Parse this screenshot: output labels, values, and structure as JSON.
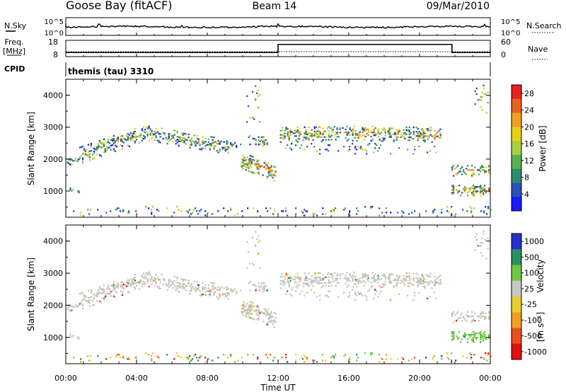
{
  "header": {
    "station": "Goose Bay (fitACF)",
    "beam": "Beam 14",
    "date": "09/Mar/2010"
  },
  "strip_nsky": {
    "label": "N.Sky",
    "left_ticks": [
      "10^5",
      "10^0"
    ],
    "right_ticks": [
      "10^5",
      "10^0"
    ],
    "right_label": "N.Search"
  },
  "strip_freq": {
    "label_line1": "Freq.",
    "label_line2": "[MHz]",
    "left_ticks": [
      "18",
      "8"
    ],
    "right_ticks": [
      "60",
      "0"
    ],
    "right_label": "Nave",
    "freq_step": {
      "x": [
        "00:00",
        "12:00",
        "21:50",
        "24:00"
      ],
      "y": [
        10.5,
        15.5,
        10.5,
        10.5
      ]
    }
  },
  "strip_cpid": {
    "label": "CPID",
    "text": "themis (tau) 3310"
  },
  "chart_data": [
    {
      "type": "heatmap",
      "name": "power",
      "ylabel": "Slant Range [km]",
      "ylim": [
        180,
        4500
      ],
      "yticks": [
        "1000",
        "2000",
        "3000",
        "4000"
      ],
      "xlim": [
        0,
        24
      ],
      "colorbar_label": "Power [dB]",
      "colorbar_ticks": [
        "4",
        "8",
        "12",
        "16",
        "20",
        "24",
        "28"
      ],
      "colorbar_range": [
        0,
        30
      ],
      "colors": [
        "#1a1aff",
        "#2a50b8",
        "#2e8b70",
        "#5ab050",
        "#a8d040",
        "#e8d018",
        "#f0a020",
        "#e86020",
        "#e82020"
      ]
    },
    {
      "type": "heatmap",
      "name": "velocity",
      "ylabel": "Slant Range [km]",
      "ylim": [
        180,
        4500
      ],
      "yticks": [
        "1000",
        "2000",
        "3000",
        "4000"
      ],
      "xlim": [
        0,
        24
      ],
      "xticks": [
        "00:00",
        "04:00",
        "08:00",
        "12:00",
        "16:00",
        "20:00",
        "00:00"
      ],
      "xlabel": "Time UT",
      "colorbar_label_main": "Velocity",
      "colorbar_label_units": "[m s⁻¹]",
      "colorbar_ticks": [
        "1000",
        "500",
        "100",
        "25",
        "-25",
        "-100",
        "-500",
        "-1000"
      ],
      "colors": [
        "#2233cc",
        "#2c8f60",
        "#70c840",
        "#c8c8c4",
        "#e8d030",
        "#f0a020",
        "#e85020",
        "#e01010"
      ],
      "ground_scatter_color": "#c8c6c0"
    }
  ]
}
